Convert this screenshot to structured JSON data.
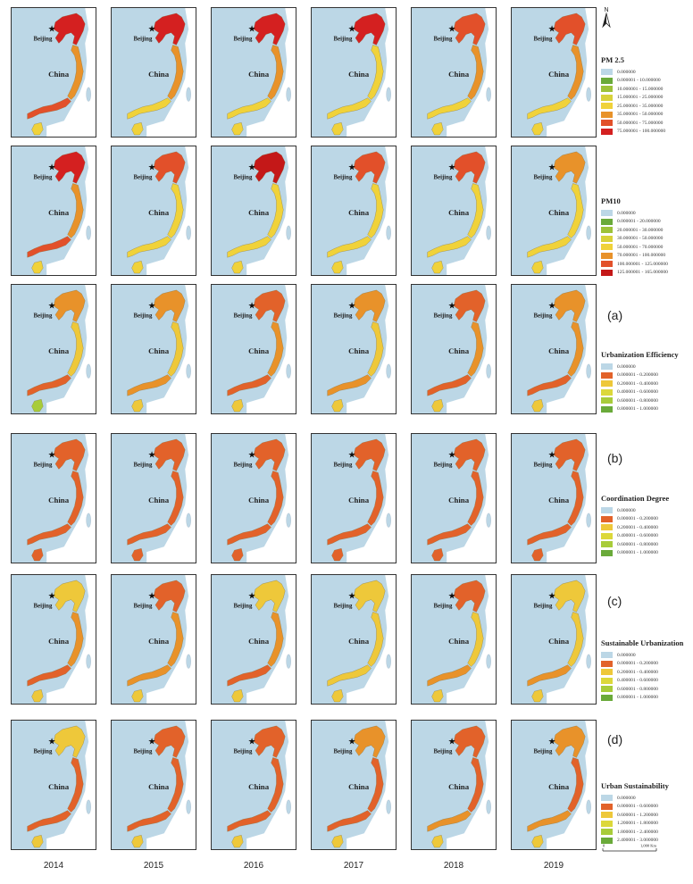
{
  "map": {
    "place_label": "Beijing",
    "country_label": "China",
    "years": [
      "2014",
      "2015",
      "2016",
      "2017",
      "2018",
      "2019"
    ],
    "north_label": "N",
    "scale": {
      "start": "0",
      "end": "1,000 Km"
    },
    "colors": {
      "background": "#bcd7e6",
      "land": "#bcd7e6",
      "taiwan": "#bcd7e6"
    }
  },
  "legends": [
    {
      "title": "PM 2.5",
      "classes": [
        {
          "label": "0.000000",
          "color": "#bcd7e6"
        },
        {
          "label": "0.000001 - 10.000000",
          "color": "#6aaa3a"
        },
        {
          "label": "10.000001 - 15.000000",
          "color": "#9dc23a"
        },
        {
          "label": "15.000001 - 25.000000",
          "color": "#d8d23a"
        },
        {
          "label": "25.000001 - 35.000000",
          "color": "#f0d23a"
        },
        {
          "label": "35.000001 - 50.000000",
          "color": "#e8922a"
        },
        {
          "label": "50.000001 - 75.000000",
          "color": "#e2502a"
        },
        {
          "label": "75.000001 - 100.000000",
          "color": "#d42020"
        }
      ]
    },
    {
      "title": "PM10",
      "classes": [
        {
          "label": "0.000000",
          "color": "#bcd7e6"
        },
        {
          "label": "0.000001 - 20.000000",
          "color": "#6aaa3a"
        },
        {
          "label": "20.000001 - 30.000000",
          "color": "#9dc23a"
        },
        {
          "label": "30.000001 - 50.000000",
          "color": "#d8d23a"
        },
        {
          "label": "50.000001 - 70.000000",
          "color": "#f0d23a"
        },
        {
          "label": "70.000001 - 100.000000",
          "color": "#e8922a"
        },
        {
          "label": "100.000001 - 125.000000",
          "color": "#e2502a"
        },
        {
          "label": "125.000001 - 165.000000",
          "color": "#c41818"
        }
      ]
    },
    {
      "letter": "(a)",
      "title": "Urbanization Efficiency",
      "classes": [
        {
          "label": "0.000000",
          "color": "#bcd7e6"
        },
        {
          "label": "0.000001 - 0.200000",
          "color": "#e2622a"
        },
        {
          "label": "0.200001 - 0.400000",
          "color": "#eec83a"
        },
        {
          "label": "0.400001 - 0.600000",
          "color": "#dcd83a"
        },
        {
          "label": "0.600001 - 0.800000",
          "color": "#a8cc3a"
        },
        {
          "label": "0.800001 - 1.000000",
          "color": "#6aaa3a"
        }
      ]
    },
    {
      "letter": "(b)",
      "title": "Coordination Degree",
      "classes": [
        {
          "label": "0.000000",
          "color": "#bcd7e6"
        },
        {
          "label": "0.000001 - 0.200000",
          "color": "#e2622a"
        },
        {
          "label": "0.200001 - 0.400000",
          "color": "#eec83a"
        },
        {
          "label": "0.400001 - 0.600000",
          "color": "#dcd83a"
        },
        {
          "label": "0.600001 - 0.800000",
          "color": "#a8cc3a"
        },
        {
          "label": "0.800001 - 1.000000",
          "color": "#6aaa3a"
        }
      ]
    },
    {
      "letter": "(c)",
      "title": "Sustainable Urbanization",
      "classes": [
        {
          "label": "0.000000",
          "color": "#bcd7e6"
        },
        {
          "label": "0.000001 - 0.200000",
          "color": "#e2622a"
        },
        {
          "label": "0.200001 - 0.400000",
          "color": "#eec83a"
        },
        {
          "label": "0.400001 - 0.600000",
          "color": "#dcd83a"
        },
        {
          "label": "0.600001 - 0.800000",
          "color": "#a8cc3a"
        },
        {
          "label": "0.800001 - 1.000000",
          "color": "#6aaa3a"
        }
      ]
    },
    {
      "letter": "(d)",
      "title": "Urban Sustainability",
      "classes": [
        {
          "label": "0.000000",
          "color": "#bcd7e6"
        },
        {
          "label": "0.000001 - 0.600000",
          "color": "#e2622a"
        },
        {
          "label": "0.600001 - 1.200000",
          "color": "#eec83a"
        },
        {
          "label": "1.200001 - 1.800000",
          "color": "#dcd83a"
        },
        {
          "label": "1.800001 - 2.400000",
          "color": "#a8cc3a"
        },
        {
          "label": "2.400001 - 3.000000",
          "color": "#6aaa3a"
        }
      ]
    }
  ],
  "grid": {
    "row_palettes": [
      {
        "north": [
          "#d42020",
          "#d42020",
          "#d42020",
          "#d42020",
          "#e2502a",
          "#e2502a"
        ],
        "mid": [
          "#e8922a",
          "#e8922a",
          "#e8922a",
          "#f0d23a",
          "#e8922a",
          "#e8922a"
        ],
        "south": [
          "#e2502a",
          "#f0d23a",
          "#f0d23a",
          "#f0d23a",
          "#f0d23a",
          "#f0d23a"
        ],
        "hainan": [
          "#f0d23a",
          "#f0d23a",
          "#f0d23a",
          "#f0d23a",
          "#f0d23a",
          "#f0d23a"
        ]
      },
      {
        "north": [
          "#d42020",
          "#e2502a",
          "#c41818",
          "#e2502a",
          "#e2502a",
          "#e8922a"
        ],
        "mid": [
          "#e8922a",
          "#f0d23a",
          "#f0d23a",
          "#f0d23a",
          "#f0d23a",
          "#f0d23a"
        ],
        "south": [
          "#e2502a",
          "#f0d23a",
          "#f0d23a",
          "#f0d23a",
          "#f0d23a",
          "#f0d23a"
        ],
        "hainan": [
          "#f0d23a",
          "#f0d23a",
          "#f0d23a",
          "#f0d23a",
          "#f0d23a",
          "#f0d23a"
        ]
      },
      {
        "north": [
          "#e8922a",
          "#e8922a",
          "#e2622a",
          "#e8922a",
          "#e2622a",
          "#e8922a"
        ],
        "mid": [
          "#eec83a",
          "#eec83a",
          "#e8922a",
          "#eec83a",
          "#e8922a",
          "#e8922a"
        ],
        "south": [
          "#e2622a",
          "#e8922a",
          "#e2622a",
          "#e8922a",
          "#e2622a",
          "#e2622a"
        ],
        "hainan": [
          "#a8cc3a",
          "#eec83a",
          "#eec83a",
          "#eec83a",
          "#eec83a",
          "#eec83a"
        ]
      },
      {
        "north": [
          "#e2622a",
          "#e2622a",
          "#e2622a",
          "#e2622a",
          "#e2622a",
          "#e2622a"
        ],
        "mid": [
          "#e2622a",
          "#e2622a",
          "#e2622a",
          "#e2622a",
          "#e2622a",
          "#e2622a"
        ],
        "south": [
          "#e2622a",
          "#e2622a",
          "#e2622a",
          "#e2622a",
          "#e2622a",
          "#e2622a"
        ],
        "hainan": [
          "#e2622a",
          "#e2622a",
          "#e2622a",
          "#e2622a",
          "#e2622a",
          "#e2622a"
        ]
      },
      {
        "north": [
          "#eec83a",
          "#e2622a",
          "#eec83a",
          "#eec83a",
          "#e2622a",
          "#eec83a"
        ],
        "mid": [
          "#e8922a",
          "#e8922a",
          "#e8922a",
          "#eec83a",
          "#eec83a",
          "#eec83a"
        ],
        "south": [
          "#e2622a",
          "#e8922a",
          "#e2622a",
          "#eec83a",
          "#e8922a",
          "#e8922a"
        ],
        "hainan": [
          "#eec83a",
          "#eec83a",
          "#eec83a",
          "#eec83a",
          "#eec83a",
          "#eec83a"
        ]
      },
      {
        "north": [
          "#eec83a",
          "#e2622a",
          "#e2622a",
          "#e8922a",
          "#e2622a",
          "#e8922a"
        ],
        "mid": [
          "#e2622a",
          "#e2622a",
          "#e2622a",
          "#e2622a",
          "#e2622a",
          "#e2622a"
        ],
        "south": [
          "#e2622a",
          "#e2622a",
          "#e2622a",
          "#e2622a",
          "#e8922a",
          "#e8922a"
        ],
        "hainan": [
          "#eec83a",
          "#eec83a",
          "#eec83a",
          "#eec83a",
          "#eec83a",
          "#eec83a"
        ]
      }
    ]
  }
}
